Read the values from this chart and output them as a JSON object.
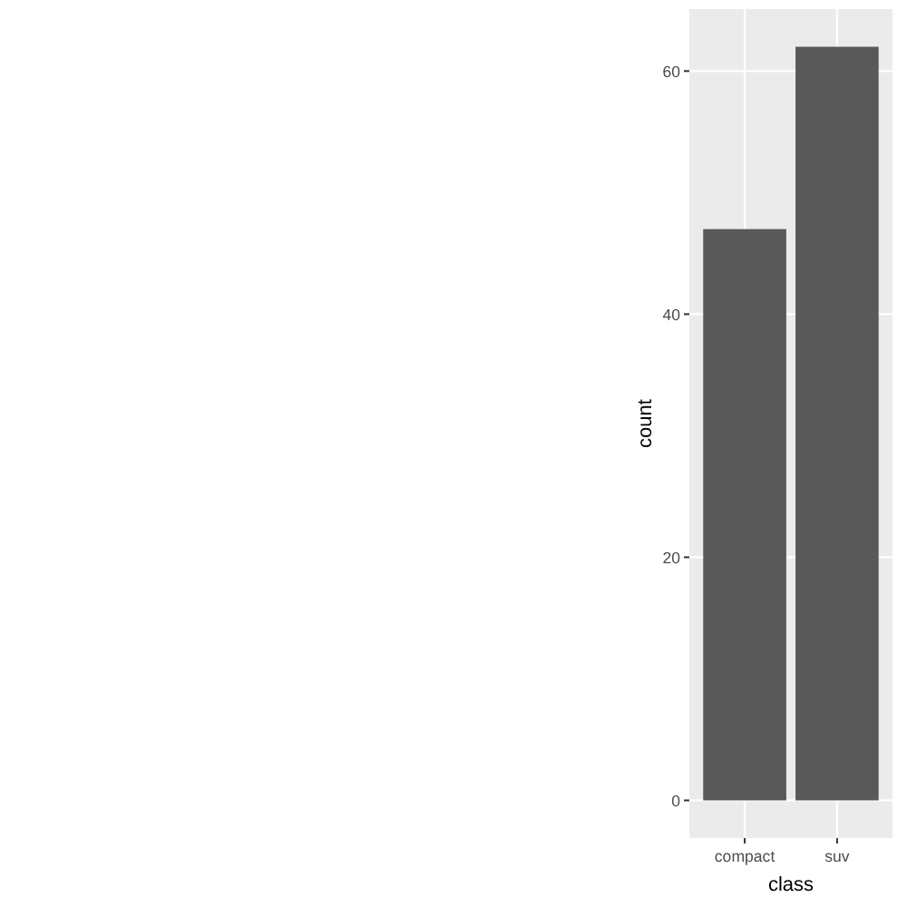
{
  "chart_data": {
    "type": "bar",
    "xlabel": "class",
    "ylabel": "count",
    "categories": [
      "compact",
      "suv"
    ],
    "values": [
      47,
      62
    ],
    "color": "#595959",
    "ylim": [
      -3.1,
      65.1
    ],
    "yticks": [
      0,
      20,
      40,
      60
    ],
    "grid": true
  }
}
